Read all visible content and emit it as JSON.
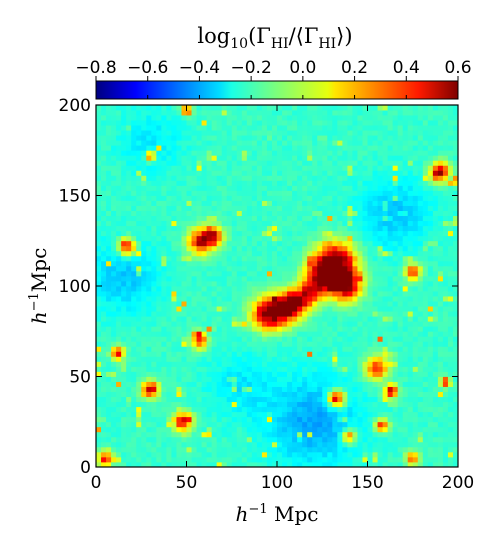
{
  "chart_data": {
    "type": "heatmap",
    "title": "",
    "colorbar": {
      "label_main": "log",
      "label_sub": "10",
      "label_rest": "(Γ",
      "label_hi": "HI",
      "label_mid": "/⟨Γ",
      "label_hi2": "HI",
      "label_end": "⟩)",
      "range": [
        -0.8,
        0.6
      ],
      "ticks": [
        "−0.8",
        "−0.6",
        "−0.4",
        "−0.2",
        "0.0",
        "0.2",
        "0.4",
        "0.6"
      ],
      "tick_values": [
        -0.8,
        -0.6,
        -0.4,
        -0.2,
        0.0,
        0.2,
        0.4,
        0.6
      ],
      "colormap": "jet",
      "placement": "top"
    },
    "x_axis": {
      "label_pre": "h",
      "label_sup": "−1",
      "label_post": " Mpc",
      "range": [
        0,
        200
      ],
      "ticks": [
        "0",
        "50",
        "100",
        "150",
        "200"
      ],
      "tick_values": [
        0,
        50,
        100,
        150,
        200
      ]
    },
    "y_axis": {
      "label_pre": "h",
      "label_sup": "−1",
      "label_post": "Mpc",
      "range": [
        0,
        200
      ],
      "ticks": [
        "0",
        "50",
        "100",
        "150",
        "200"
      ],
      "tick_values": [
        0,
        50,
        100,
        150,
        200
      ]
    },
    "grid_cells": 72,
    "background_value": -0.2,
    "hotspots": [
      {
        "x": 133,
        "y": 113,
        "peak": 0.6,
        "extent": 12
      },
      {
        "x": 138,
        "y": 100,
        "peak": 0.55,
        "extent": 9
      },
      {
        "x": 125,
        "y": 108,
        "peak": 0.35,
        "extent": 10
      },
      {
        "x": 120,
        "y": 98,
        "peak": 0.3,
        "extent": 8
      },
      {
        "x": 95,
        "y": 85,
        "peak": 0.55,
        "extent": 10
      },
      {
        "x": 105,
        "y": 88,
        "peak": 0.45,
        "extent": 9
      },
      {
        "x": 112,
        "y": 92,
        "peak": 0.3,
        "extent": 8
      },
      {
        "x": 58,
        "y": 125,
        "peak": 0.45,
        "extent": 8
      },
      {
        "x": 65,
        "y": 128,
        "peak": 0.35,
        "extent": 6
      },
      {
        "x": 17,
        "y": 122,
        "peak": 0.5,
        "extent": 5
      },
      {
        "x": 30,
        "y": 43,
        "peak": 0.55,
        "extent": 5
      },
      {
        "x": 57,
        "y": 70,
        "peak": 0.4,
        "extent": 5
      },
      {
        "x": 155,
        "y": 55,
        "peak": 0.4,
        "extent": 7
      },
      {
        "x": 163,
        "y": 42,
        "peak": 0.55,
        "extent": 4
      },
      {
        "x": 133,
        "y": 38,
        "peak": 0.55,
        "extent": 5
      },
      {
        "x": 158,
        "y": 23,
        "peak": 0.35,
        "extent": 4
      },
      {
        "x": 48,
        "y": 25,
        "peak": 0.4,
        "extent": 6
      },
      {
        "x": 190,
        "y": 163,
        "peak": 0.5,
        "extent": 6
      },
      {
        "x": 175,
        "y": 108,
        "peak": 0.35,
        "extent": 5
      },
      {
        "x": 12,
        "y": 63,
        "peak": 0.45,
        "extent": 4
      },
      {
        "x": 140,
        "y": 17,
        "peak": 0.35,
        "extent": 4
      },
      {
        "x": 30,
        "y": 172,
        "peak": 0.4,
        "extent": 3
      },
      {
        "x": 50,
        "y": 197,
        "peak": 0.4,
        "extent": 3
      },
      {
        "x": 5,
        "y": 5,
        "peak": 0.35,
        "extent": 5
      },
      {
        "x": 175,
        "y": 5,
        "peak": 0.3,
        "extent": 4
      },
      {
        "x": 193,
        "y": 47,
        "peak": 0.45,
        "extent": 3
      }
    ],
    "cool_regions": [
      {
        "x": 15,
        "y": 105,
        "depth": -0.15,
        "extent": 20
      },
      {
        "x": 120,
        "y": 25,
        "depth": -0.2,
        "extent": 25
      },
      {
        "x": 165,
        "y": 140,
        "depth": -0.15,
        "extent": 20
      },
      {
        "x": 80,
        "y": 45,
        "depth": -0.1,
        "extent": 18
      },
      {
        "x": 30,
        "y": 180,
        "depth": -0.1,
        "extent": 18
      }
    ]
  }
}
